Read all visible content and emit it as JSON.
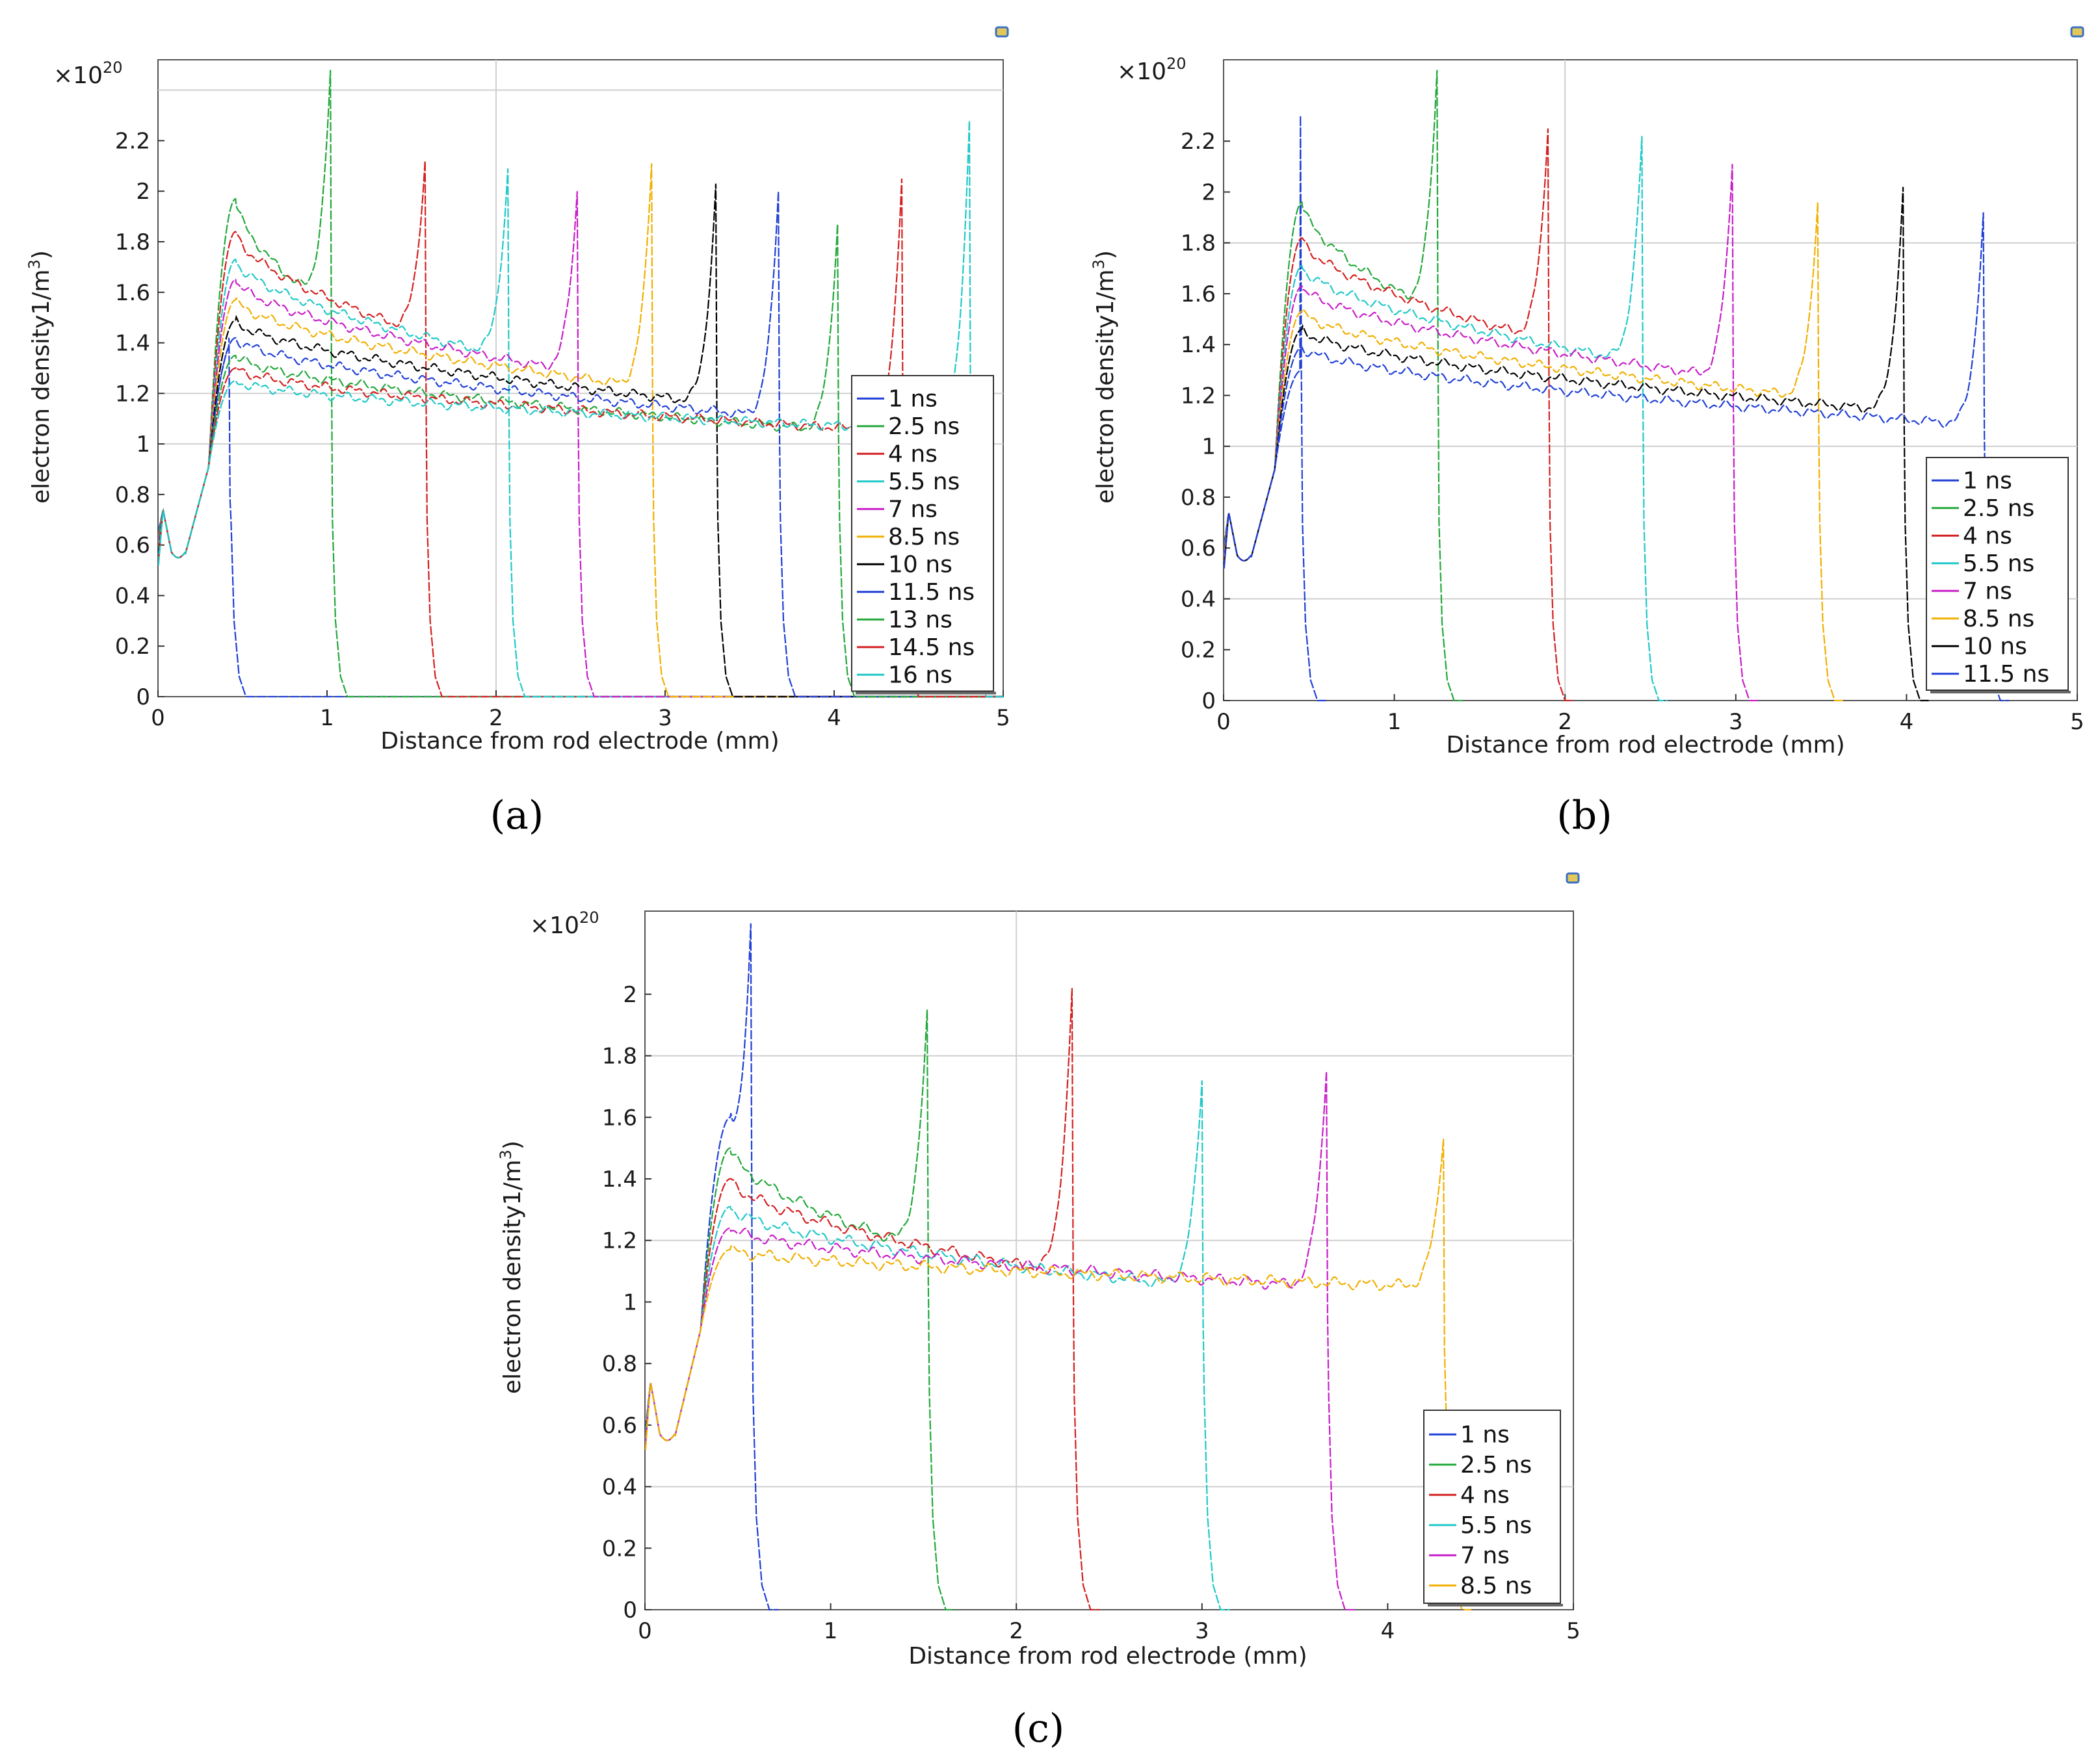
{
  "figure": {
    "ylabel_text": "electron density1/m",
    "ylabel_sup": "3",
    "multiplier_base": "×10",
    "multiplier_exp": "20"
  },
  "chart_data": [
    {
      "type": "line",
      "caption": "(a)",
      "xlabel": "Distance from rod electrode (mm)",
      "ylabel": "electron density1/m3",
      "multiplier": "×10^20",
      "xlim": [
        0,
        5
      ],
      "ylim": [
        0,
        2.52
      ],
      "xticks": [
        "0",
        "1",
        "2",
        "3",
        "4",
        "5"
      ],
      "yticks": [
        "0",
        "0.2",
        "0.4",
        "0.6",
        "0.8",
        "1",
        "1.2",
        "1.4",
        "1.6",
        "1.8",
        "2",
        "2.2"
      ],
      "ytick_values": [
        0,
        0.2,
        0.4,
        0.6,
        0.8,
        1,
        1.2,
        1.4,
        1.6,
        1.8,
        2,
        2.2
      ],
      "grid_y": [
        1,
        1.2,
        2.4
      ],
      "grid_x": [
        2
      ],
      "legend_position": "right",
      "series": [
        {
          "name": "1 ns",
          "color": "#1f3fd6",
          "front": 0.42,
          "plateau": 1.42,
          "peak": 1.42
        },
        {
          "name": "2.5 ns",
          "color": "#22a83a",
          "front": 1.02,
          "plateau": 1.97,
          "peak": 2.48
        },
        {
          "name": "4 ns",
          "color": "#d42020",
          "front": 1.58,
          "plateau": 1.84,
          "peak": 2.12
        },
        {
          "name": "5.5 ns",
          "color": "#21c8c8",
          "front": 2.07,
          "plateau": 1.73,
          "peak": 2.09
        },
        {
          "name": "7 ns",
          "color": "#c81ec8",
          "front": 2.48,
          "plateau": 1.65,
          "peak": 2.0
        },
        {
          "name": "8.5 ns",
          "color": "#f0b000",
          "front": 2.92,
          "plateau": 1.57,
          "peak": 2.11
        },
        {
          "name": "10 ns",
          "color": "#000000",
          "front": 3.3,
          "plateau": 1.49,
          "peak": 2.03
        },
        {
          "name": "11.5 ns",
          "color": "#1f3fd6",
          "front": 3.67,
          "plateau": 1.42,
          "peak": 2.0
        },
        {
          "name": "13 ns",
          "color": "#22a83a",
          "front": 4.02,
          "plateau": 1.35,
          "peak": 1.87
        },
        {
          "name": "14.5 ns",
          "color": "#d42020",
          "front": 4.4,
          "plateau": 1.3,
          "peak": 2.05
        },
        {
          "name": "16 ns",
          "color": "#21c8c8",
          "front": 4.8,
          "plateau": 1.25,
          "peak": 2.28
        }
      ]
    },
    {
      "type": "line",
      "caption": "(b)",
      "xlabel": "Distance from rod electrode (mm)",
      "ylabel": "electron density1/m3",
      "multiplier": "×10^20",
      "xlim": [
        0,
        5
      ],
      "ylim": [
        0,
        2.52
      ],
      "xticks": [
        "0",
        "1",
        "2",
        "3",
        "4",
        "5"
      ],
      "yticks": [
        "0",
        "0.2",
        "0.4",
        "0.6",
        "0.8",
        "1",
        "1.2",
        "1.4",
        "1.6",
        "1.8",
        "2",
        "2.2"
      ],
      "ytick_values": [
        0,
        0.2,
        0.4,
        0.6,
        0.8,
        1,
        1.2,
        1.4,
        1.6,
        1.8,
        2,
        2.2
      ],
      "grid_y": [
        0.4,
        1,
        1.8
      ],
      "grid_x": [
        2
      ],
      "legend_position": "bottom-right",
      "series": [
        {
          "name": "1 ns",
          "color": "#1f3fd6",
          "front": 0.45,
          "plateau": 1.3,
          "peak": 2.3
        },
        {
          "name": "2.5 ns",
          "color": "#22a83a",
          "front": 1.25,
          "plateau": 1.96,
          "peak": 2.48
        },
        {
          "name": "4 ns",
          "color": "#d42020",
          "front": 1.9,
          "plateau": 1.82,
          "peak": 2.25
        },
        {
          "name": "5.5 ns",
          "color": "#21c8c8",
          "front": 2.45,
          "plateau": 1.71,
          "peak": 2.22
        },
        {
          "name": "7 ns",
          "color": "#c81ec8",
          "front": 2.98,
          "plateau": 1.63,
          "peak": 2.11
        },
        {
          "name": "8.5 ns",
          "color": "#f0b000",
          "front": 3.48,
          "plateau": 1.53,
          "peak": 1.96
        },
        {
          "name": "10 ns",
          "color": "#000000",
          "front": 3.98,
          "plateau": 1.46,
          "peak": 2.02
        },
        {
          "name": "11.5 ns",
          "color": "#1f3fd6",
          "front": 4.45,
          "plateau": 1.39,
          "peak": 1.92
        }
      ]
    },
    {
      "type": "line",
      "caption": "(c)",
      "xlabel": "Distance from rod electrode (mm)",
      "ylabel": "electron density1/m3",
      "multiplier": "×10^20",
      "xlim": [
        0,
        5
      ],
      "ylim": [
        0,
        2.27
      ],
      "xticks": [
        "0",
        "1",
        "2",
        "3",
        "4",
        "5"
      ],
      "yticks": [
        "0",
        "0.2",
        "0.4",
        "0.6",
        "0.8",
        "1",
        "1.2",
        "1.4",
        "1.6",
        "1.8",
        "2"
      ],
      "ytick_values": [
        0,
        0.2,
        0.4,
        0.6,
        0.8,
        1,
        1.2,
        1.4,
        1.6,
        1.8,
        2
      ],
      "grid_y": [
        0.4,
        1.2,
        1.8
      ],
      "grid_x": [
        2
      ],
      "legend_position": "bottom-right",
      "series": [
        {
          "name": "1 ns",
          "color": "#1f3fd6",
          "front": 0.57,
          "plateau": 1.6,
          "peak": 2.23
        },
        {
          "name": "2.5 ns",
          "color": "#22a83a",
          "front": 1.52,
          "plateau": 1.5,
          "peak": 1.95
        },
        {
          "name": "4 ns",
          "color": "#d42020",
          "front": 2.3,
          "plateau": 1.4,
          "peak": 2.02
        },
        {
          "name": "5.5 ns",
          "color": "#21c8c8",
          "front": 3.0,
          "plateau": 1.31,
          "peak": 1.72
        },
        {
          "name": "7 ns",
          "color": "#c81ec8",
          "front": 3.67,
          "plateau": 1.24,
          "peak": 1.75
        },
        {
          "name": "8.5 ns",
          "color": "#f0b000",
          "front": 4.3,
          "plateau": 1.17,
          "peak": 1.53
        }
      ]
    }
  ]
}
